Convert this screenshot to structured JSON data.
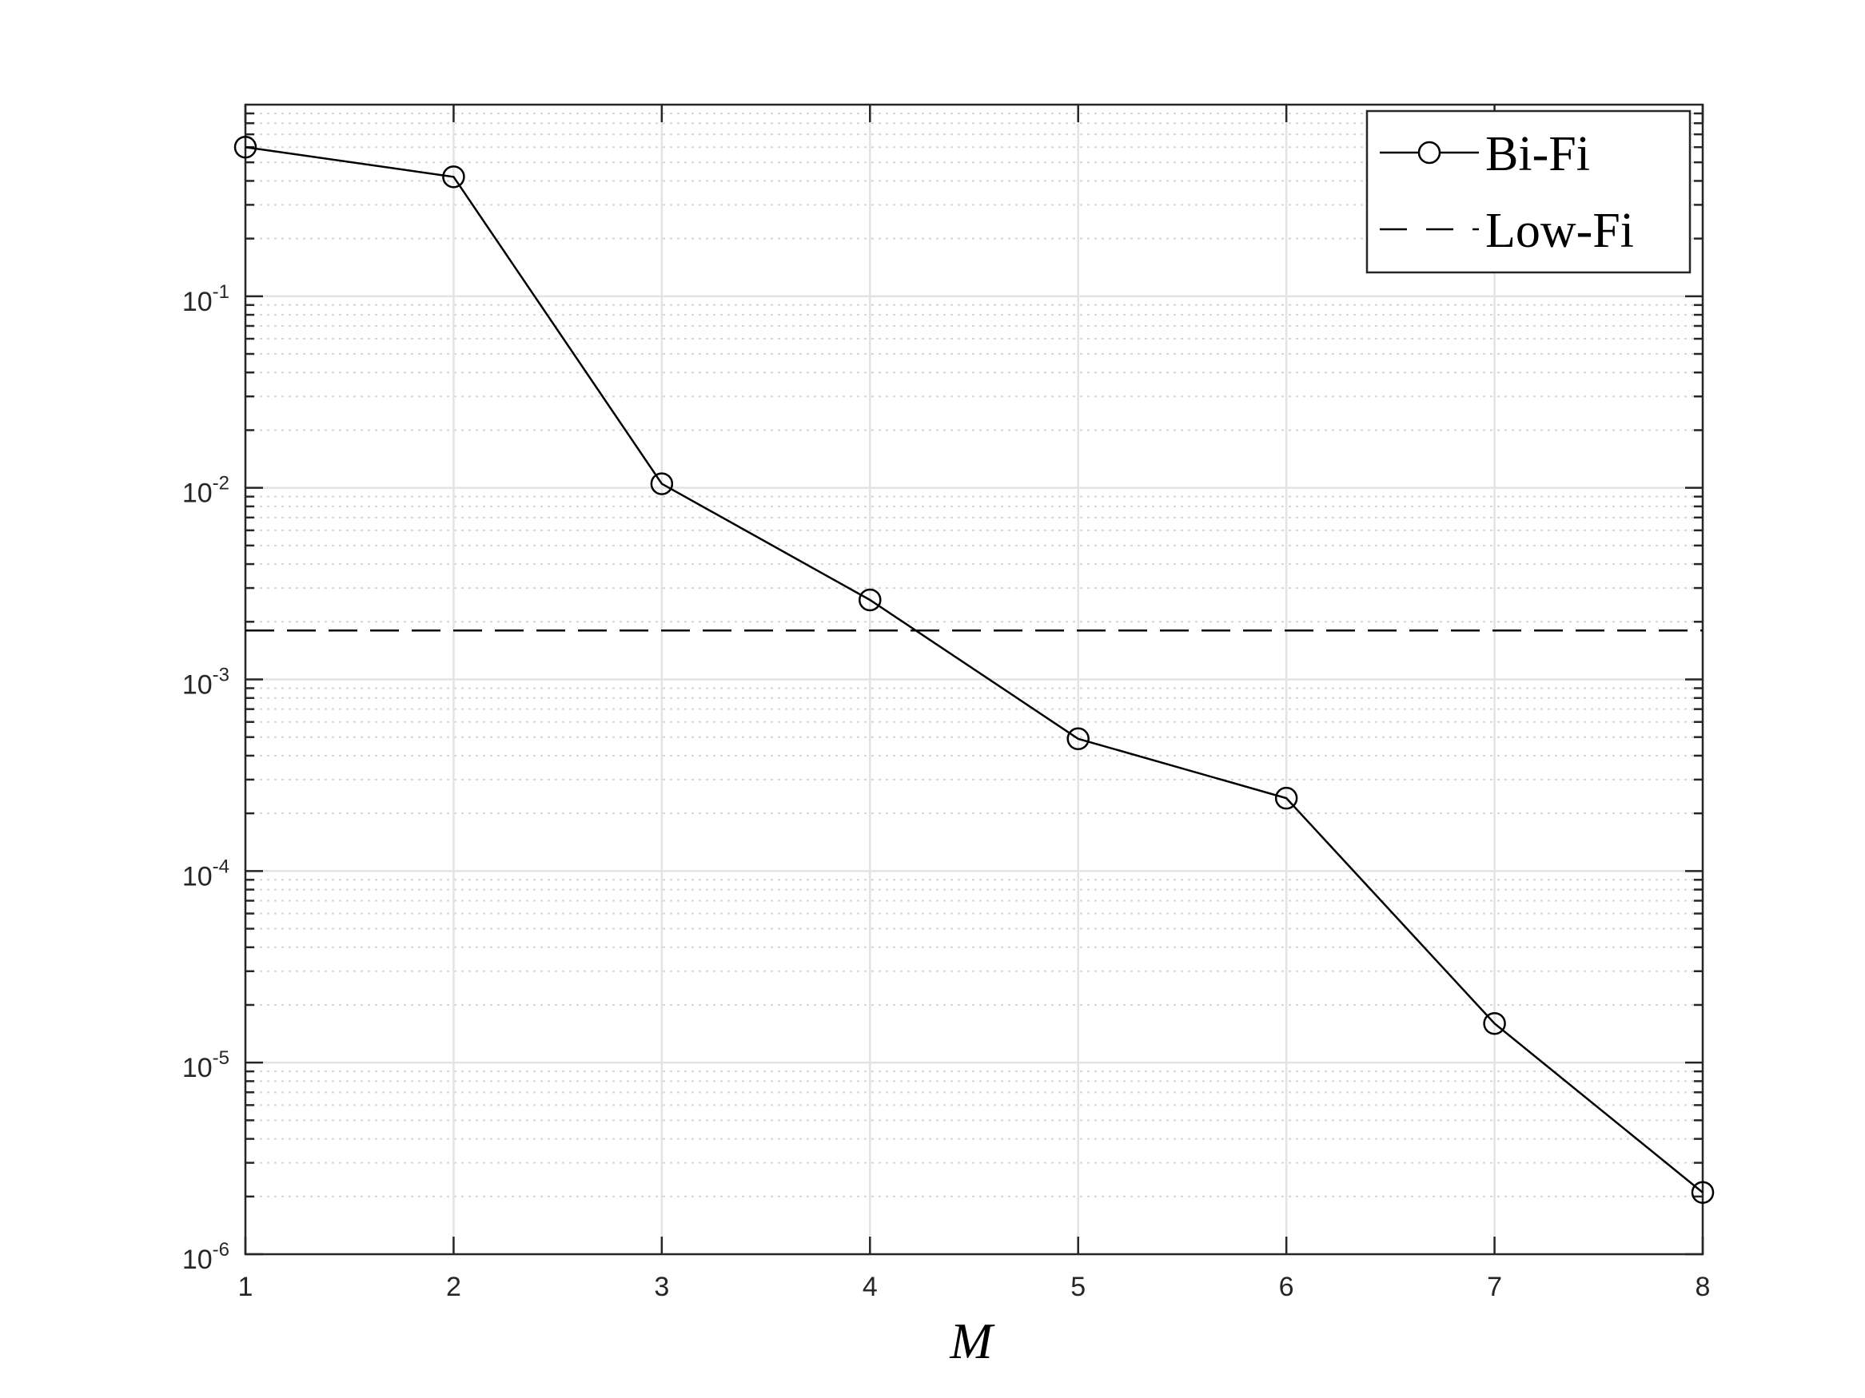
{
  "chart_data": {
    "type": "line",
    "title": "",
    "xlabel": "M",
    "ylabel": "",
    "x": [
      1,
      2,
      3,
      4,
      5,
      6,
      7,
      8
    ],
    "xlim": [
      1,
      8
    ],
    "ylim": [
      1e-06,
      1
    ],
    "yscale": "log",
    "grid": true,
    "minor_grid": true,
    "legend_position": "top-right",
    "x_ticks": [
      "1",
      "2",
      "3",
      "4",
      "5",
      "6",
      "7",
      "8"
    ],
    "y_ticks": [
      {
        "base": "10",
        "exp": "-1",
        "value": 0.1
      },
      {
        "base": "10",
        "exp": "-2",
        "value": 0.01
      },
      {
        "base": "10",
        "exp": "-3",
        "value": 0.001
      },
      {
        "base": "10",
        "exp": "-4",
        "value": 0.0001
      },
      {
        "base": "10",
        "exp": "-5",
        "value": 1e-05
      },
      {
        "base": "10",
        "exp": "-6",
        "value": 1e-06
      }
    ],
    "series": [
      {
        "name": "Bi-Fi",
        "style": "solid-circle-markers",
        "color": "#000000",
        "values": [
          0.6,
          0.42,
          0.0105,
          0.0026,
          0.00049,
          0.00024,
          1.6e-05,
          2.1e-06
        ]
      },
      {
        "name": "Low-Fi",
        "style": "dashed",
        "color": "#000000",
        "constant": 0.0018
      }
    ]
  }
}
